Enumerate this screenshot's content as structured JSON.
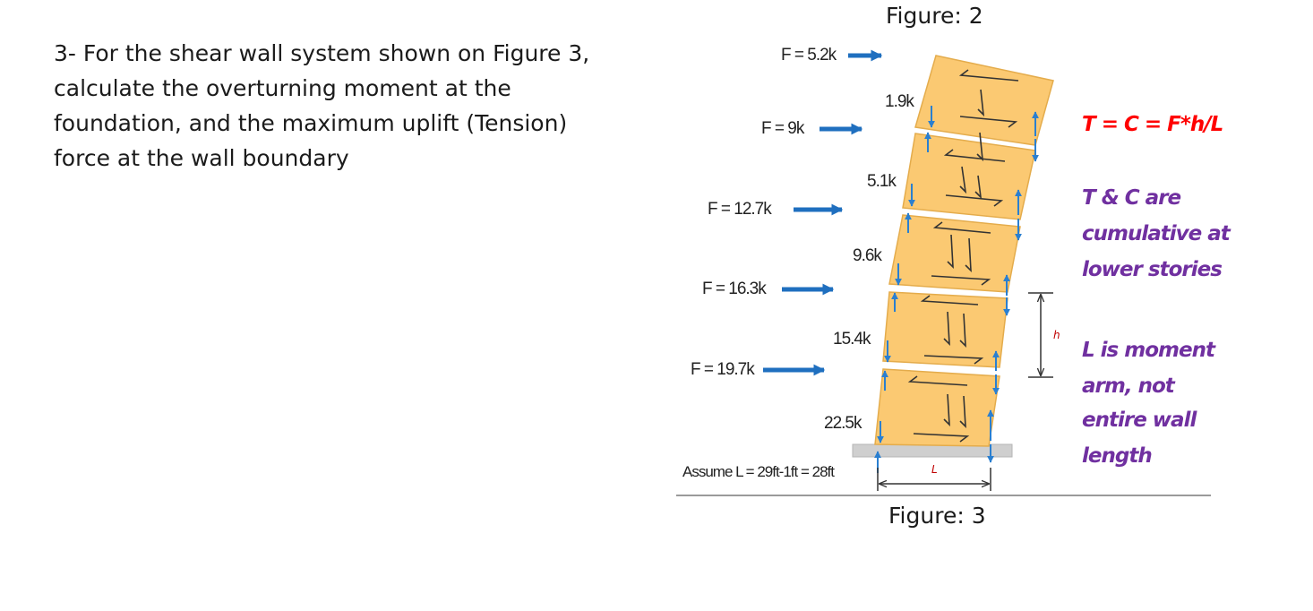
{
  "problem": {
    "lines": [
      "3- For the shear wall system shown on Figure 3,",
      "calculate the overturning moment at the",
      "foundation, and the maximum uplift (Tension)",
      "force at the wall boundary"
    ]
  },
  "figure_captions": {
    "top": "Figure: 2",
    "bottom": "Figure: 3"
  },
  "diagram": {
    "applied_forces": [
      "F = 5.2k",
      "F = 9k",
      "F = 12.7k",
      "F = 16.3k",
      "F = 19.7k"
    ],
    "story_shears": [
      "1.9k",
      "5.1k",
      "9.6k",
      "15.4k",
      "22.5k"
    ],
    "assumption": "Assume L = 29ft-1ft = 28ft",
    "dimension_labels": {
      "height": "h",
      "length": "L"
    },
    "notes": [
      {
        "lines": [
          "T = C = F*h/L"
        ],
        "color": "#ff0000"
      },
      {
        "lines": [
          "T & C are",
          "cumulative at",
          "lower stories"
        ],
        "color": "#7030a0"
      },
      {
        "lines": [
          "L is moment",
          "arm, not",
          "entire wall",
          "length"
        ],
        "color": "#7030a0"
      }
    ],
    "colors": {
      "wall_fill": "#fbc972",
      "force_arrow": "#1f6fbf",
      "small_arrow": "#2a7fd0",
      "foundation": "#cfcfcf"
    }
  }
}
